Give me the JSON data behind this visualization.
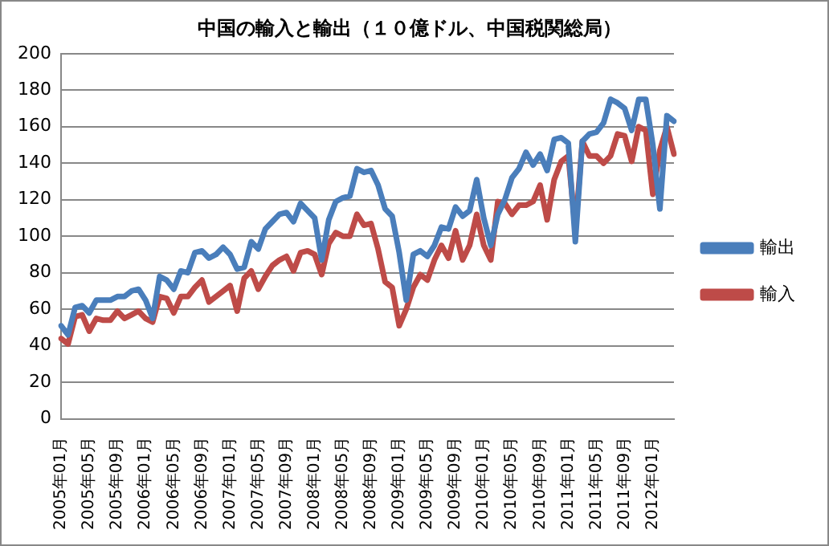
{
  "chart_data": {
    "type": "line",
    "title": "中国の輸入と輸出（１０億ドル、中国税関総局）",
    "categories": [
      "2005年01月",
      null,
      null,
      null,
      "2005年05月",
      null,
      null,
      null,
      "2005年09月",
      null,
      null,
      null,
      "2006年01月",
      null,
      null,
      null,
      "2006年05月",
      null,
      null,
      null,
      "2006年09月",
      null,
      null,
      null,
      "2007年01月",
      null,
      null,
      null,
      "2007年05月",
      null,
      null,
      null,
      "2007年09月",
      null,
      null,
      null,
      "2008年01月",
      null,
      null,
      null,
      "2008年05月",
      null,
      null,
      null,
      "2008年09月",
      null,
      null,
      null,
      "2009年01月",
      null,
      null,
      null,
      "2009年05月",
      null,
      null,
      null,
      "2009年09月",
      null,
      null,
      null,
      "2010年01月",
      null,
      null,
      null,
      "2010年05月",
      null,
      null,
      null,
      "2010年09月",
      null,
      null,
      null,
      "2011年01月",
      null,
      null,
      null,
      "2011年05月",
      null,
      null,
      null,
      "2011年09月",
      null,
      null,
      null,
      "2012年01月",
      null,
      null,
      null
    ],
    "series": [
      {
        "name": "輸出",
        "color": "#4a7ebb",
        "values": [
          51,
          46,
          61,
          62,
          58,
          65,
          65,
          65,
          67,
          67,
          70,
          71,
          65,
          55,
          78,
          76,
          71,
          81,
          80,
          91,
          92,
          88,
          90,
          94,
          90,
          82,
          83,
          97,
          93,
          104,
          108,
          112,
          113,
          108,
          118,
          114,
          110,
          87,
          109,
          119,
          121,
          122,
          137,
          135,
          136,
          128,
          115,
          111,
          91,
          65,
          90,
          92,
          89,
          95,
          105,
          104,
          116,
          111,
          114,
          131,
          110,
          95,
          112,
          120,
          132,
          137,
          146,
          139,
          145,
          136,
          153,
          154,
          151,
          97,
          152,
          156,
          157,
          162,
          175,
          173,
          170,
          158,
          175,
          175,
          150,
          115,
          166,
          163
        ]
      },
      {
        "name": "輸入",
        "color": "#be4b48",
        "values": [
          44,
          41,
          56,
          57,
          48,
          55,
          54,
          54,
          59,
          55,
          57,
          59,
          55,
          53,
          67,
          66,
          58,
          67,
          67,
          72,
          76,
          64,
          67,
          70,
          73,
          59,
          77,
          81,
          71,
          78,
          84,
          87,
          89,
          81,
          91,
          92,
          90,
          79,
          96,
          102,
          100,
          100,
          112,
          106,
          107,
          93,
          75,
          72,
          51,
          60,
          72,
          79,
          76,
          87,
          95,
          88,
          103,
          87,
          95,
          112,
          95,
          87,
          119,
          118,
          112,
          117,
          117,
          119,
          128,
          109,
          131,
          141,
          144,
          104,
          152,
          144,
          144,
          140,
          144,
          156,
          155,
          141,
          160,
          158,
          123,
          147,
          160,
          145
        ]
      }
    ],
    "ylim": [
      0,
      200
    ],
    "yticks": [
      0,
      20,
      40,
      60,
      80,
      100,
      120,
      140,
      160,
      180,
      200
    ],
    "grid": "y",
    "legend": "right",
    "marker": "none",
    "line_style": "solid"
  }
}
